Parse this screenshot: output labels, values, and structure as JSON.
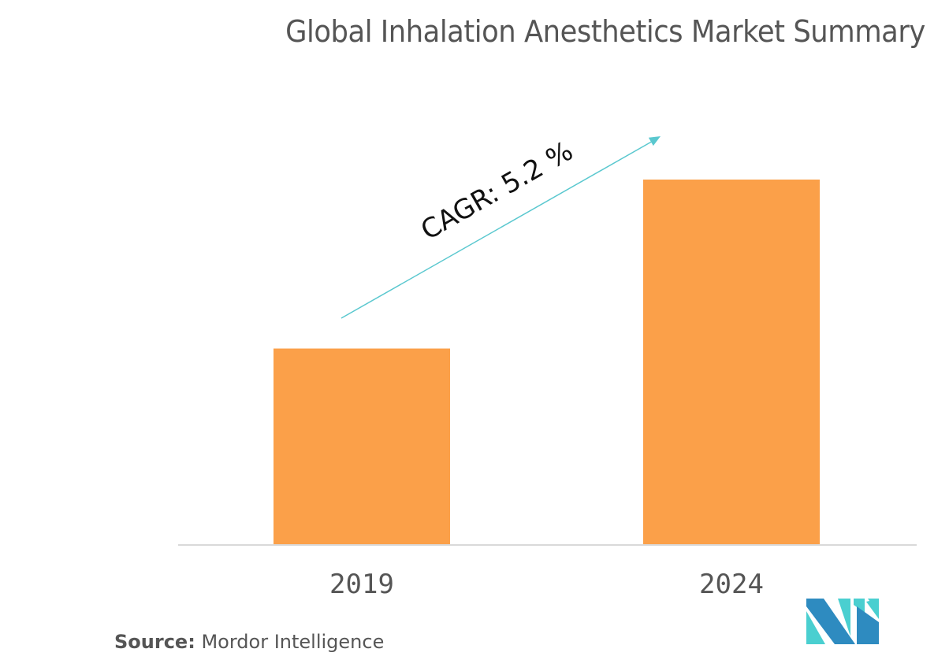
{
  "chart_data": {
    "type": "bar",
    "title": "Global Inhalation Anesthetics Market Summary",
    "categories": [
      "2019",
      "2024"
    ],
    "values": [
      1.0,
      1.86
    ],
    "value_note": "relative bar heights; no value axis shown",
    "xlabel": "",
    "ylabel": "",
    "ylim": [
      0,
      2.0
    ],
    "grid": false,
    "legend": null,
    "annotation": {
      "text": "CAGR: 5.2 %",
      "type": "arrow",
      "direction": "up-right"
    },
    "colors": {
      "bar": "#FBA049",
      "arrow": "#5AC8CF",
      "baseline": "#D9D9D9",
      "text": "#555555"
    }
  },
  "source": {
    "label": "Source:",
    "value": "Mordor Intelligence"
  },
  "logo": {
    "name": "Mordor Intelligence logo",
    "colors": [
      "#2E8BC0",
      "#4ACFD0"
    ]
  }
}
